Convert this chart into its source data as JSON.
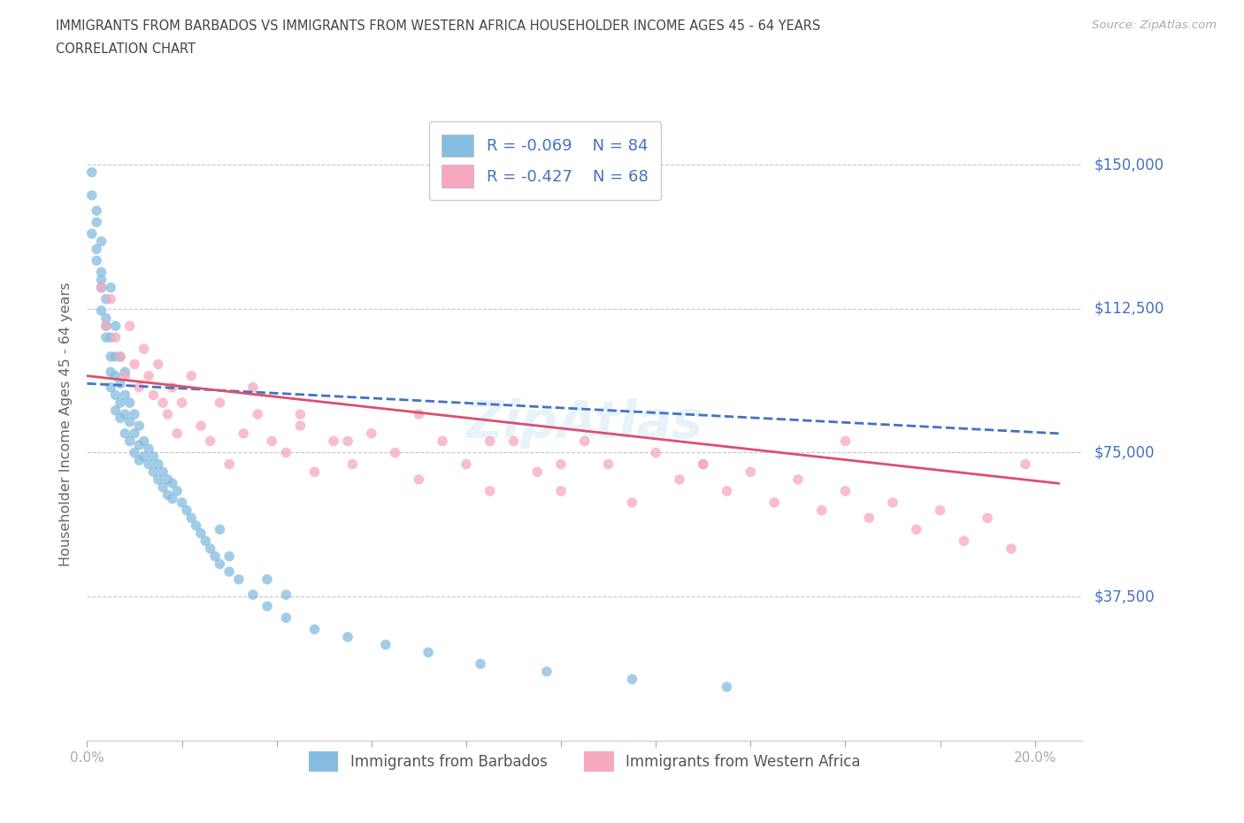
{
  "title_line1": "IMMIGRANTS FROM BARBADOS VS IMMIGRANTS FROM WESTERN AFRICA HOUSEHOLDER INCOME AGES 45 - 64 YEARS",
  "title_line2": "CORRELATION CHART",
  "source_text": "Source: ZipAtlas.com",
  "ylabel": "Householder Income Ages 45 - 64 years",
  "xlim": [
    0.0,
    0.21
  ],
  "ylim": [
    0,
    165000
  ],
  "ytick_vals": [
    0,
    37500,
    75000,
    112500,
    150000
  ],
  "ytick_labels": [
    "",
    "$37,500",
    "$75,000",
    "$112,500",
    "$150,000"
  ],
  "xtick_vals": [
    0.0,
    0.02,
    0.04,
    0.06,
    0.08,
    0.1,
    0.12,
    0.14,
    0.16,
    0.18,
    0.2
  ],
  "xtick_labels": [
    "0.0%",
    "",
    "",
    "",
    "",
    "",
    "",
    "",
    "",
    "",
    "20.0%"
  ],
  "r1": "-0.069",
  "n1": "84",
  "r2": "-0.427",
  "n2": "68",
  "label1": "Immigrants from Barbados",
  "label2": "Immigrants from Western Africa",
  "color_blue": "#85bde0",
  "color_pink": "#f5a8be",
  "color_trend_blue": "#4472c4",
  "color_trend_pink": "#d9516e",
  "title_color": "#444444",
  "axis_label_color": "#666666",
  "tick_color": "#4472c4",
  "grid_color": "#c8c8c8",
  "barbados_x": [
    0.001,
    0.001,
    0.001,
    0.002,
    0.002,
    0.002,
    0.002,
    0.003,
    0.003,
    0.003,
    0.003,
    0.003,
    0.004,
    0.004,
    0.004,
    0.004,
    0.005,
    0.005,
    0.005,
    0.005,
    0.005,
    0.006,
    0.006,
    0.006,
    0.006,
    0.006,
    0.007,
    0.007,
    0.007,
    0.007,
    0.008,
    0.008,
    0.008,
    0.008,
    0.009,
    0.009,
    0.009,
    0.01,
    0.01,
    0.01,
    0.011,
    0.011,
    0.011,
    0.012,
    0.012,
    0.013,
    0.013,
    0.014,
    0.014,
    0.015,
    0.015,
    0.016,
    0.016,
    0.017,
    0.017,
    0.018,
    0.018,
    0.019,
    0.02,
    0.021,
    0.022,
    0.023,
    0.024,
    0.025,
    0.026,
    0.027,
    0.028,
    0.03,
    0.032,
    0.035,
    0.038,
    0.042,
    0.048,
    0.055,
    0.063,
    0.072,
    0.083,
    0.097,
    0.115,
    0.135,
    0.028,
    0.03,
    0.038,
    0.042
  ],
  "barbados_y": [
    142000,
    132000,
    148000,
    138000,
    128000,
    125000,
    135000,
    130000,
    122000,
    118000,
    112000,
    120000,
    115000,
    108000,
    105000,
    110000,
    118000,
    105000,
    100000,
    96000,
    92000,
    108000,
    100000,
    95000,
    90000,
    86000,
    100000,
    93000,
    88000,
    84000,
    96000,
    90000,
    85000,
    80000,
    88000,
    83000,
    78000,
    85000,
    80000,
    75000,
    82000,
    77000,
    73000,
    78000,
    74000,
    76000,
    72000,
    74000,
    70000,
    72000,
    68000,
    70000,
    66000,
    68000,
    64000,
    67000,
    63000,
    65000,
    62000,
    60000,
    58000,
    56000,
    54000,
    52000,
    50000,
    48000,
    46000,
    44000,
    42000,
    38000,
    35000,
    32000,
    29000,
    27000,
    25000,
    23000,
    20000,
    18000,
    16000,
    14000,
    55000,
    48000,
    42000,
    38000
  ],
  "western_africa_x": [
    0.003,
    0.004,
    0.005,
    0.006,
    0.007,
    0.008,
    0.009,
    0.01,
    0.011,
    0.012,
    0.013,
    0.014,
    0.015,
    0.016,
    0.017,
    0.018,
    0.019,
    0.02,
    0.022,
    0.024,
    0.026,
    0.028,
    0.03,
    0.033,
    0.036,
    0.039,
    0.042,
    0.045,
    0.048,
    0.052,
    0.056,
    0.06,
    0.065,
    0.07,
    0.075,
    0.08,
    0.085,
    0.09,
    0.095,
    0.1,
    0.105,
    0.11,
    0.115,
    0.12,
    0.125,
    0.13,
    0.135,
    0.14,
    0.145,
    0.15,
    0.155,
    0.16,
    0.165,
    0.17,
    0.175,
    0.18,
    0.185,
    0.19,
    0.195,
    0.198,
    0.035,
    0.045,
    0.055,
    0.07,
    0.085,
    0.1,
    0.13,
    0.16
  ],
  "western_africa_y": [
    118000,
    108000,
    115000,
    105000,
    100000,
    95000,
    108000,
    98000,
    92000,
    102000,
    95000,
    90000,
    98000,
    88000,
    85000,
    92000,
    80000,
    88000,
    95000,
    82000,
    78000,
    88000,
    72000,
    80000,
    85000,
    78000,
    75000,
    82000,
    70000,
    78000,
    72000,
    80000,
    75000,
    68000,
    78000,
    72000,
    65000,
    78000,
    70000,
    65000,
    78000,
    72000,
    62000,
    75000,
    68000,
    72000,
    65000,
    70000,
    62000,
    68000,
    60000,
    65000,
    58000,
    62000,
    55000,
    60000,
    52000,
    58000,
    50000,
    72000,
    92000,
    85000,
    78000,
    85000,
    78000,
    72000,
    72000,
    78000
  ],
  "trend_blue_x0": 0.0,
  "trend_blue_x1": 0.205,
  "trend_blue_y0": 93000,
  "trend_blue_y1": 80000,
  "trend_pink_x0": 0.0,
  "trend_pink_x1": 0.205,
  "trend_pink_y0": 95000,
  "trend_pink_y1": 67000
}
